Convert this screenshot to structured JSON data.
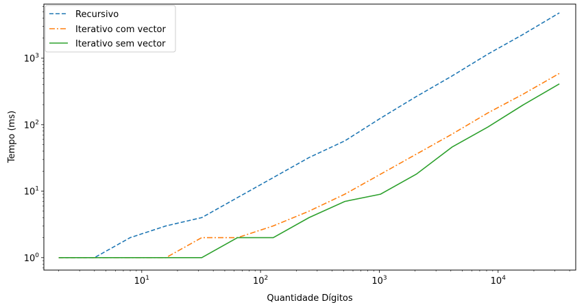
{
  "chart_data": {
    "type": "line",
    "title": "",
    "xlabel": "Quantidade Dígitos",
    "ylabel": "Tempo (ms)",
    "xscale": "log",
    "yscale": "log",
    "xlim": [
      1.5,
      45000
    ],
    "ylim": [
      0.65,
      6500
    ],
    "grid": false,
    "legend_position": "top-left",
    "x": [
      2,
      4,
      8,
      16,
      32,
      64,
      128,
      256,
      512,
      1024,
      2048,
      4096,
      8192,
      16384,
      32768
    ],
    "x_ticks": [
      {
        "value": 10,
        "base": "10",
        "exp": "1"
      },
      {
        "value": 100,
        "base": "10",
        "exp": "2"
      },
      {
        "value": 1000,
        "base": "10",
        "exp": "3"
      },
      {
        "value": 10000,
        "base": "10",
        "exp": "4"
      }
    ],
    "y_ticks": [
      {
        "value": 1,
        "base": "10",
        "exp": "0"
      },
      {
        "value": 10,
        "base": "10",
        "exp": "1"
      },
      {
        "value": 100,
        "base": "10",
        "exp": "2"
      },
      {
        "value": 1000,
        "base": "10",
        "exp": "3"
      }
    ],
    "series": [
      {
        "name": "Recursivo",
        "color": "#1f77b4",
        "line_style": "dashed",
        "values": [
          1,
          1,
          2,
          3,
          4,
          8,
          16,
          32,
          57,
          125,
          265,
          540,
          1150,
          2300,
          4800
        ]
      },
      {
        "name": "Iterativo com vector",
        "color": "#ff7f0e",
        "line_style": "dashdot",
        "values": [
          1,
          1,
          1,
          1,
          2,
          2,
          3,
          5,
          9,
          18,
          36,
          72,
          150,
          290,
          590
        ]
      },
      {
        "name": "Iterativo sem vector",
        "color": "#2ca02c",
        "line_style": "solid",
        "values": [
          1,
          1,
          1,
          1,
          1,
          2,
          2,
          4,
          7,
          9,
          18,
          46,
          92,
          200,
          410
        ]
      }
    ]
  }
}
